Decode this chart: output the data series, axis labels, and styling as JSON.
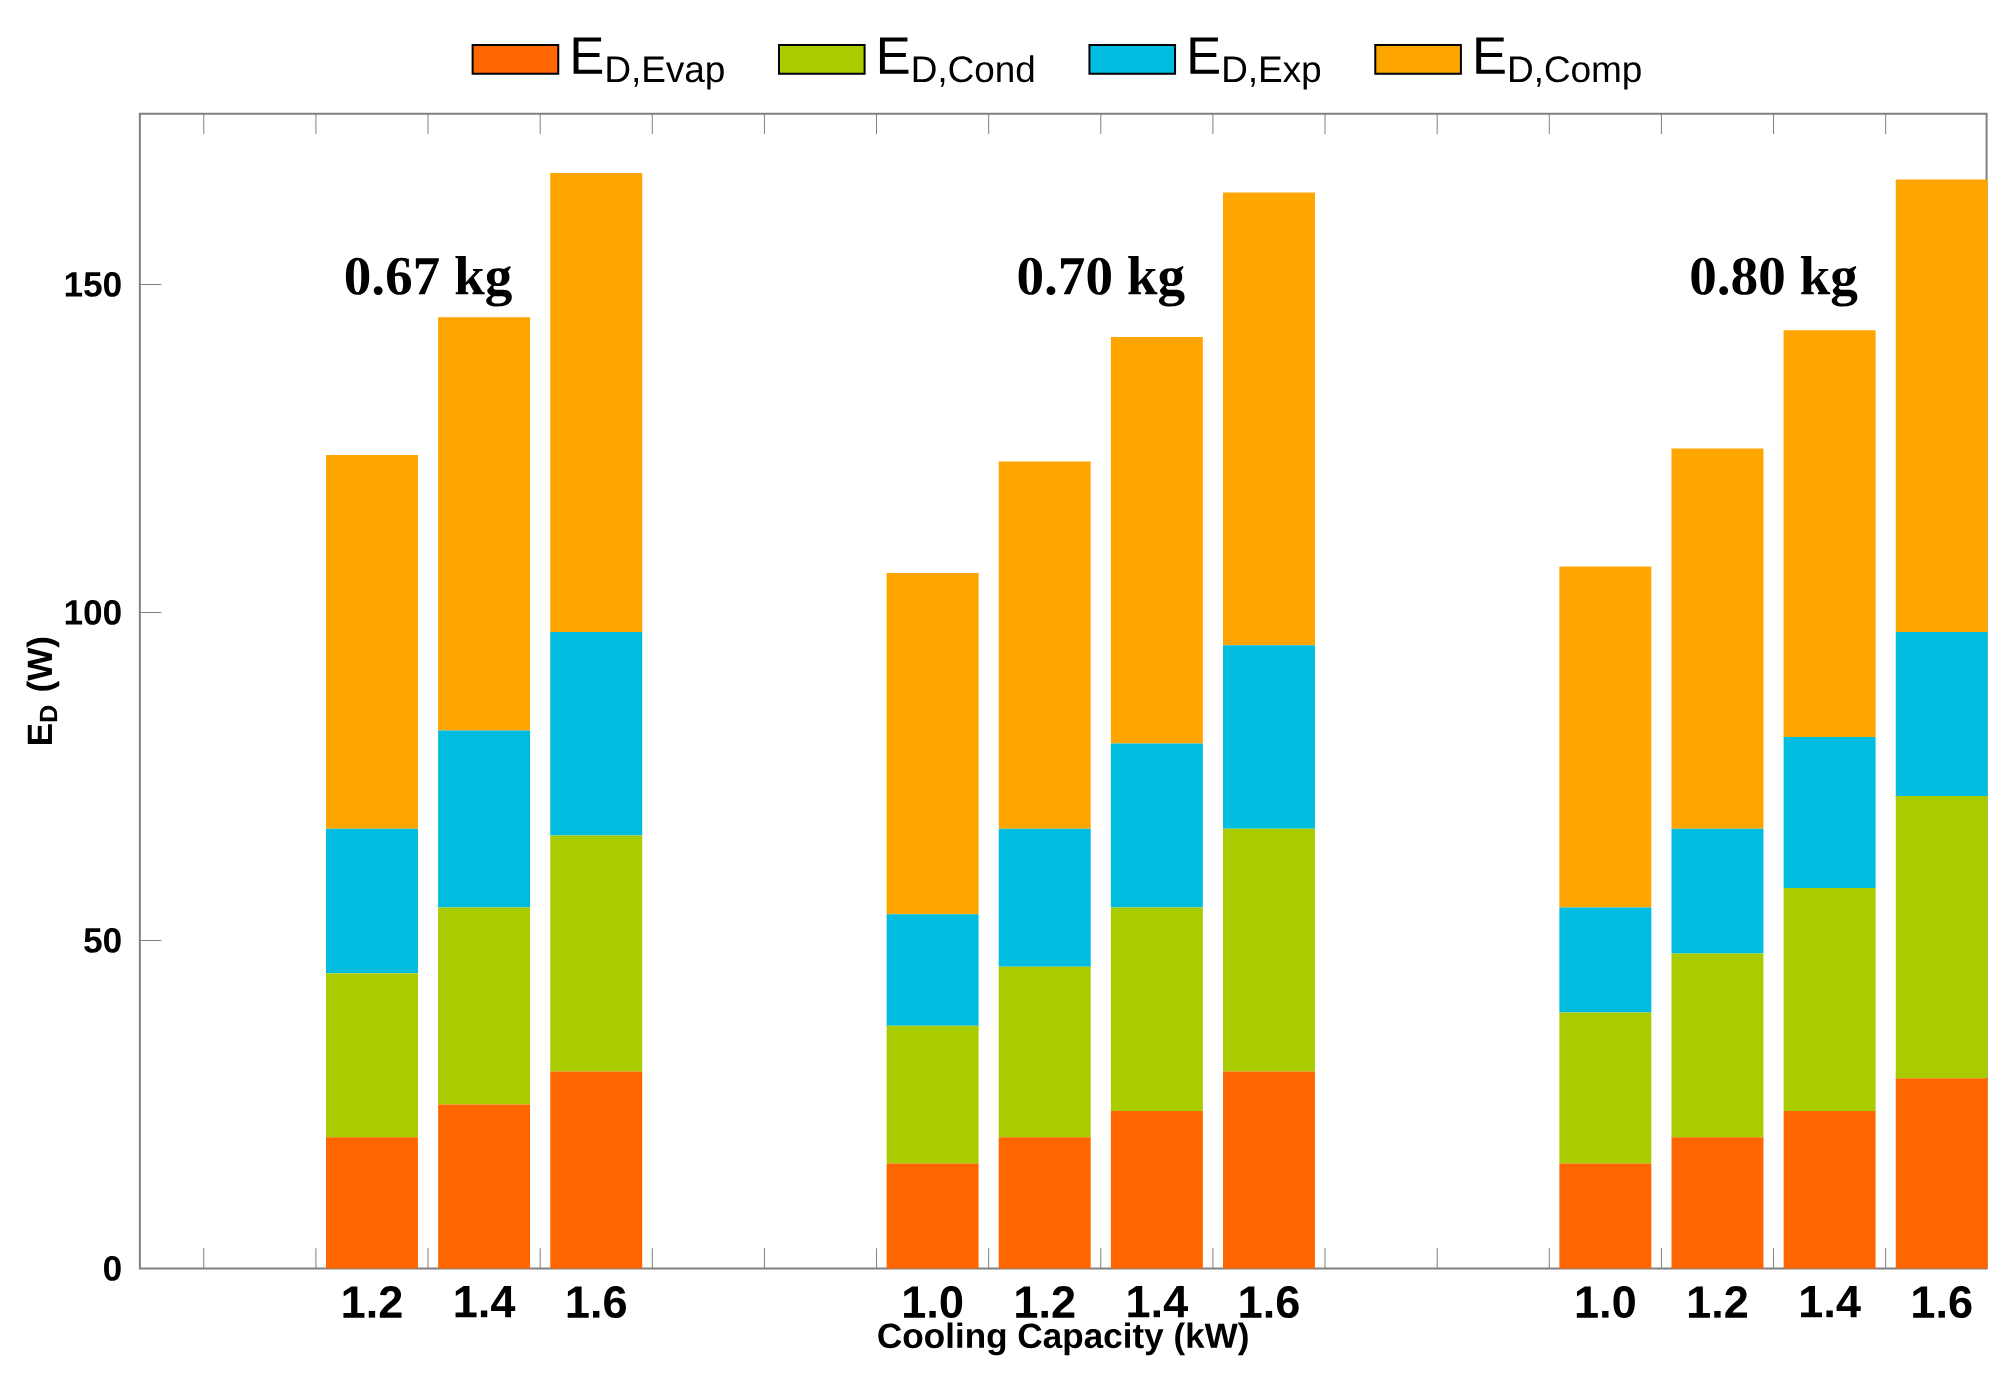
{
  "chart_data": {
    "type": "bar",
    "stacked": true,
    "xlabel": "Cooling Capacity (kW)",
    "ylabel": "E$_{D}$ (W)",
    "categories": [
      "1.2",
      "1.4",
      "1.6",
      null,
      null,
      "1.0",
      "1.2",
      "1.4",
      "1.6",
      null,
      null,
      "1.0",
      "1.2",
      "1.4",
      "1.6"
    ],
    "series": [
      {
        "name": "E$_{D,Evap}$",
        "color": "#ff6600",
        "values": [
          20,
          25,
          30,
          null,
          null,
          16,
          20,
          24,
          30,
          null,
          null,
          16,
          20,
          24,
          29
        ]
      },
      {
        "name": "E$_{D,Cond}$",
        "color": "#a8cc00",
        "values": [
          25,
          30,
          36,
          null,
          null,
          21,
          26,
          31,
          37,
          null,
          null,
          23,
          28,
          34,
          43
        ]
      },
      {
        "name": "E$_{D,Exp}$",
        "color": "#00bcdf",
        "values": [
          22,
          27,
          31,
          null,
          null,
          17,
          21,
          25,
          28,
          null,
          null,
          16,
          19,
          23,
          25
        ]
      },
      {
        "name": "E$_{D,Comp}$",
        "color": "#ffa500",
        "values": [
          57,
          63,
          70,
          null,
          null,
          52,
          56,
          62,
          69,
          null,
          null,
          52,
          58,
          62,
          69
        ]
      }
    ],
    "ylim": [
      0,
      176
    ],
    "yticks": [
      0,
      50,
      100,
      150
    ],
    "annotations": [
      "0.67 kg",
      "0.70 kg",
      "0.80 kg"
    ],
    "legend": "top"
  }
}
